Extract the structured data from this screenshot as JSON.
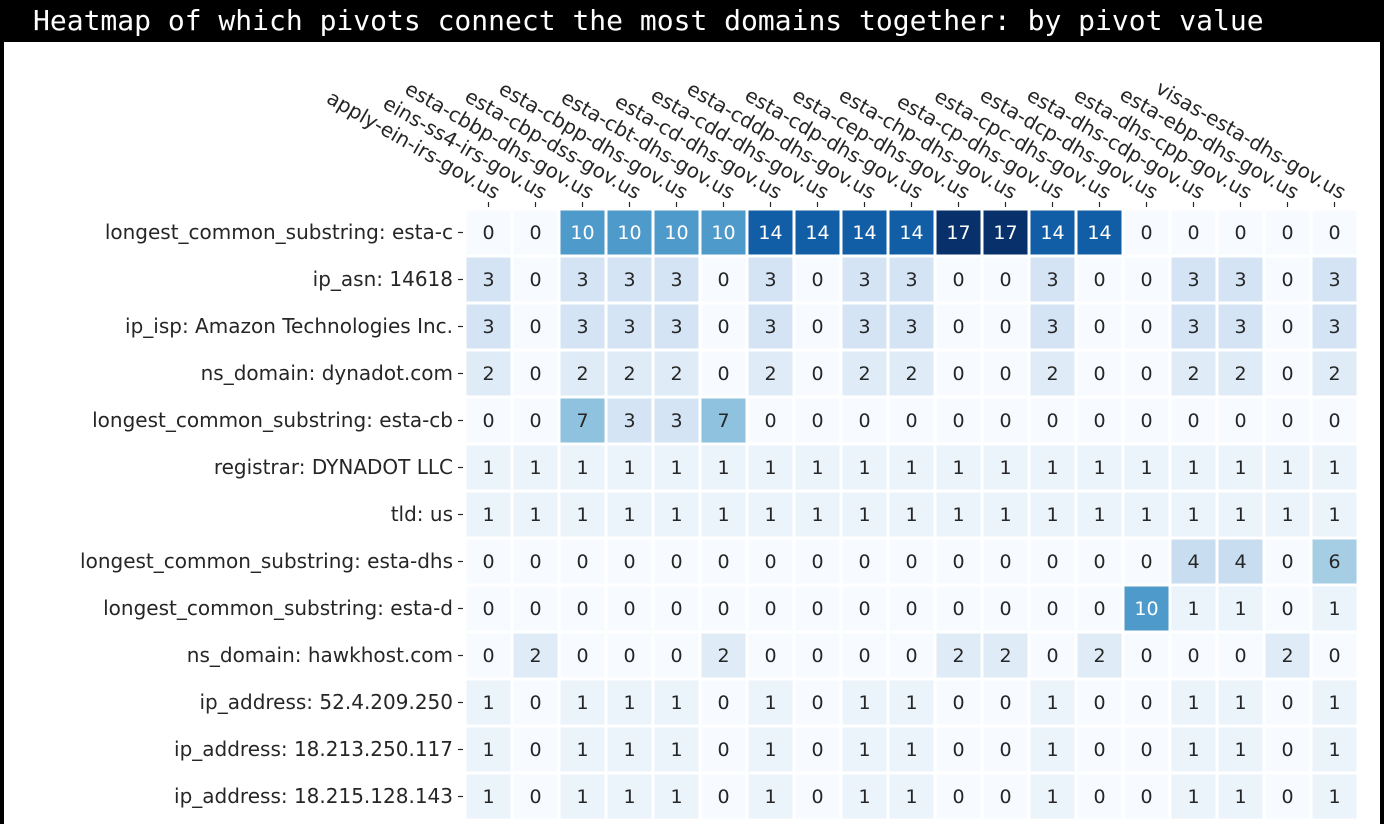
{
  "title": "Heatmap of which pivots connect the most domains together: by pivot value",
  "colors": {
    "low": "#f7fbff",
    "high": "#08306b",
    "title_bg": "#000000",
    "title_fg": "#ffffff"
  },
  "chart_data": {
    "type": "heatmap",
    "colormap": "Blues",
    "vmin": 0,
    "vmax": 17,
    "x_labels": [
      "apply-ein-irs-gov.us",
      "eins-ss4-irs-gov.us",
      "esta-cbbp-dhs-gov.us",
      "esta-cbp-dss-gov.us",
      "esta-cbpp-dhs-gov.us",
      "esta-cbt-dhs-gov.us",
      "esta-cd-dhs-gov.us",
      "esta-cdd-dhs-gov.us",
      "esta-cddp-dhs-gov.us",
      "esta-cdp-dhs-gov.us",
      "esta-cep-dhs-gov.us",
      "esta-chp-dhs-gov.us",
      "esta-cp-dhs-gov.us",
      "esta-cpc-dhs-gov.us",
      "esta-dcp-dhs-gov.us",
      "esta-dhs-cdp-gov.us",
      "esta-dhs-cpp-gov.us",
      "esta-ebp-dhs-gov.us",
      "visas-esta-dhs-gov.us"
    ],
    "y_labels": [
      "longest_common_substring: esta-c",
      "ip_asn: 14618",
      "ip_isp: Amazon Technologies Inc.",
      "ns_domain: dynadot.com",
      "longest_common_substring: esta-cb",
      "registrar: DYNADOT LLC",
      "tld: us",
      "longest_common_substring: esta-dhs",
      "longest_common_substring: esta-d",
      "ns_domain: hawkhost.com",
      "ip_address: 52.4.209.250",
      "ip_address: 18.213.250.117",
      "ip_address: 18.215.128.143"
    ],
    "values": [
      [
        0,
        0,
        10,
        10,
        10,
        10,
        14,
        14,
        14,
        14,
        17,
        17,
        14,
        14,
        0,
        0,
        0,
        0,
        0
      ],
      [
        3,
        0,
        3,
        3,
        3,
        0,
        3,
        0,
        3,
        3,
        0,
        0,
        3,
        0,
        0,
        3,
        3,
        0,
        3
      ],
      [
        3,
        0,
        3,
        3,
        3,
        0,
        3,
        0,
        3,
        3,
        0,
        0,
        3,
        0,
        0,
        3,
        3,
        0,
        3
      ],
      [
        2,
        0,
        2,
        2,
        2,
        0,
        2,
        0,
        2,
        2,
        0,
        0,
        2,
        0,
        0,
        2,
        2,
        0,
        2
      ],
      [
        0,
        0,
        7,
        3,
        3,
        7,
        0,
        0,
        0,
        0,
        0,
        0,
        0,
        0,
        0,
        0,
        0,
        0,
        0
      ],
      [
        1,
        1,
        1,
        1,
        1,
        1,
        1,
        1,
        1,
        1,
        1,
        1,
        1,
        1,
        1,
        1,
        1,
        1,
        1
      ],
      [
        1,
        1,
        1,
        1,
        1,
        1,
        1,
        1,
        1,
        1,
        1,
        1,
        1,
        1,
        1,
        1,
        1,
        1,
        1
      ],
      [
        0,
        0,
        0,
        0,
        0,
        0,
        0,
        0,
        0,
        0,
        0,
        0,
        0,
        0,
        0,
        4,
        4,
        0,
        6
      ],
      [
        0,
        0,
        0,
        0,
        0,
        0,
        0,
        0,
        0,
        0,
        0,
        0,
        0,
        0,
        10,
        1,
        1,
        0,
        1
      ],
      [
        0,
        2,
        0,
        0,
        0,
        2,
        0,
        0,
        0,
        0,
        2,
        2,
        0,
        2,
        0,
        0,
        0,
        2,
        0
      ],
      [
        1,
        0,
        1,
        1,
        1,
        0,
        1,
        0,
        1,
        1,
        0,
        0,
        1,
        0,
        0,
        1,
        1,
        0,
        1
      ],
      [
        1,
        0,
        1,
        1,
        1,
        0,
        1,
        0,
        1,
        1,
        0,
        0,
        1,
        0,
        0,
        1,
        1,
        0,
        1
      ],
      [
        1,
        0,
        1,
        1,
        1,
        0,
        1,
        0,
        1,
        1,
        0,
        0,
        1,
        0,
        0,
        1,
        1,
        0,
        1
      ]
    ],
    "annotated": true,
    "grid": false
  }
}
